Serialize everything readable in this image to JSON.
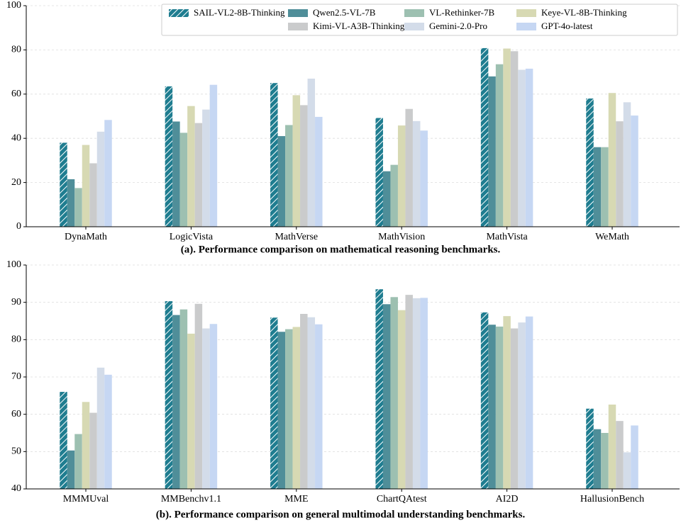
{
  "chart_data": [
    {
      "type": "bar",
      "title": "(a). Performance comparison on mathematical reasoning benchmarks.",
      "categories": [
        "DynaMath",
        "LogicVista",
        "MathVerse",
        "MathVision",
        "MathVista",
        "WeMath"
      ],
      "series": [
        {
          "name": "SAIL-VL2-8B-Thinking",
          "color": "#1f7d90",
          "hatch": true,
          "values": [
            38,
            63.5,
            65,
            49.2,
            80.8,
            58
          ]
        },
        {
          "name": "Qwen2.5-VL-7B",
          "color": "#4f8e99",
          "values": [
            21.5,
            47.6,
            41,
            25.1,
            68,
            36
          ]
        },
        {
          "name": "VL-Rethinker-7B",
          "color": "#9dc0b1",
          "values": [
            17.5,
            42.5,
            46,
            28,
            73.5,
            36
          ]
        },
        {
          "name": "Keye-VL-8B-Thinking",
          "color": "#d7d9b3",
          "values": [
            37,
            54.6,
            59.5,
            45.8,
            80.6,
            60.5
          ]
        },
        {
          "name": "Kimi-VL-A3B-Thinking",
          "color": "#cacbcc",
          "values": [
            28.7,
            46.9,
            55,
            53.3,
            79.4,
            47.7
          ]
        },
        {
          "name": "Gemini-2.0-Pro",
          "color": "#d3dce9",
          "values": [
            43,
            53,
            67,
            47.8,
            71,
            56.3
          ]
        },
        {
          "name": "GPT-4o-latest",
          "color": "#c6d7f3",
          "values": [
            48.3,
            64.2,
            49.7,
            43.5,
            71.5,
            50.3
          ]
        }
      ],
      "ylim": [
        0,
        100
      ],
      "yticks": [
        0,
        20,
        40,
        60,
        80,
        100
      ],
      "grid": true,
      "legend": "upper right"
    },
    {
      "type": "bar",
      "title": "(b). Performance comparison on general multimodal understanding benchmarks.",
      "categories": [
        "MMMUval",
        "MMBenchv1.1",
        "MME",
        "ChartQAtest",
        "AI2D",
        "HallusionBench"
      ],
      "series": [
        {
          "color": "#1f7d90",
          "hatch": true,
          "values": [
            66,
            90.3,
            85.9,
            93.5,
            87.3,
            61.5
          ]
        },
        {
          "color": "#4f8e99",
          "values": [
            50.3,
            86.6,
            82.1,
            89.5,
            84,
            56
          ]
        },
        {
          "color": "#9dc0b1",
          "values": [
            54.7,
            88.1,
            82.8,
            91.4,
            83.5,
            55
          ]
        },
        {
          "color": "#d7d9b3",
          "values": [
            63.3,
            81.6,
            83.4,
            87.9,
            86.3,
            62.6
          ]
        },
        {
          "color": "#cacbcc",
          "values": [
            60.4,
            89.6,
            86.9,
            92,
            83,
            58.2
          ]
        },
        {
          "color": "#d3dce9",
          "values": [
            72.5,
            83,
            86,
            91.1,
            84.6,
            49.8
          ]
        },
        {
          "color": "#c6d7f3",
          "values": [
            70.6,
            84.2,
            84.1,
            91.2,
            86.2,
            57
          ]
        }
      ],
      "ylim": [
        40,
        100
      ],
      "yticks": [
        40,
        50,
        60,
        70,
        80,
        90,
        100
      ],
      "grid": true
    }
  ]
}
